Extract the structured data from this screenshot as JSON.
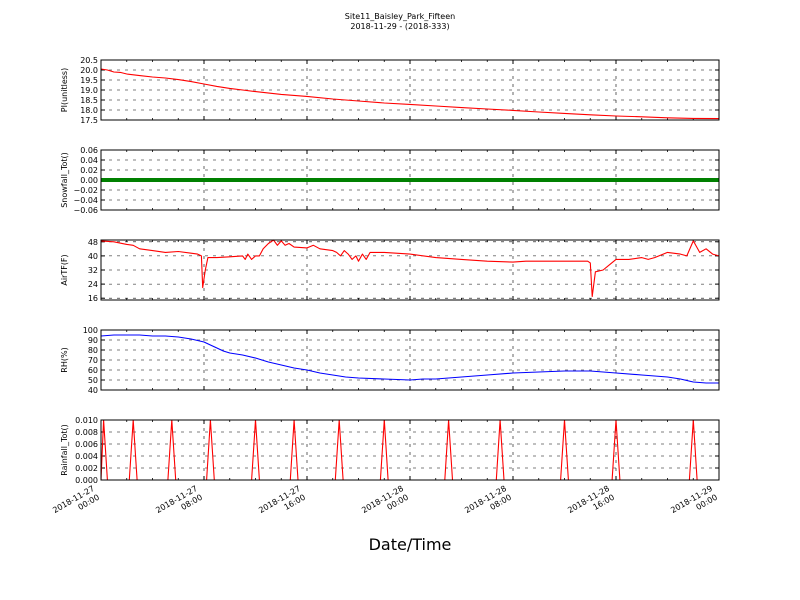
{
  "title_line1": "Site11_Baisley_Park_Fifteen",
  "title_line2": "2018-11-29 - (2018-333)",
  "xlabel": "Date/Time",
  "x_ticks": [
    {
      "t": 0,
      "l1": "2018-11-27",
      "l2": "00:00"
    },
    {
      "t": 8,
      "l1": "2018-11-27",
      "l2": "08:00"
    },
    {
      "t": 16,
      "l1": "2018-11-27",
      "l2": "16:00"
    },
    {
      "t": 24,
      "l1": "2018-11-28",
      "l2": "00:00"
    },
    {
      "t": 32,
      "l1": "2018-11-28",
      "l2": "08:00"
    },
    {
      "t": 40,
      "l1": "2018-11-28",
      "l2": "16:00"
    },
    {
      "t": 48,
      "l1": "2018-11-29",
      "l2": "00:00"
    }
  ],
  "chart_data": [
    {
      "type": "line",
      "ylabel": "PI(unitless)",
      "color": "#ff0000",
      "ylim": [
        17.5,
        20.5
      ],
      "yticks": [
        "17.5",
        "18.0",
        "18.5",
        "19.0",
        "19.5",
        "20.0",
        "20.5"
      ],
      "points": [
        [
          0,
          20.05
        ],
        [
          0.5,
          20.0
        ],
        [
          1,
          19.9
        ],
        [
          1.5,
          19.88
        ],
        [
          2,
          19.8
        ],
        [
          3,
          19.72
        ],
        [
          4,
          19.65
        ],
        [
          5,
          19.6
        ],
        [
          6,
          19.52
        ],
        [
          7,
          19.42
        ],
        [
          8,
          19.3
        ],
        [
          9,
          19.18
        ],
        [
          10,
          19.08
        ],
        [
          11,
          19.0
        ],
        [
          12,
          18.92
        ],
        [
          14,
          18.78
        ],
        [
          16,
          18.68
        ],
        [
          18,
          18.55
        ],
        [
          20,
          18.45
        ],
        [
          22,
          18.35
        ],
        [
          24,
          18.28
        ],
        [
          26,
          18.2
        ],
        [
          28,
          18.12
        ],
        [
          30,
          18.05
        ],
        [
          32,
          17.98
        ],
        [
          34,
          17.9
        ],
        [
          36,
          17.83
        ],
        [
          38,
          17.76
        ],
        [
          40,
          17.7
        ],
        [
          42,
          17.66
        ],
        [
          44,
          17.61
        ],
        [
          46,
          17.58
        ],
        [
          48,
          17.57
        ]
      ]
    },
    {
      "type": "line",
      "ylabel": "Snowfall_Tot()",
      "color": "#008000",
      "ylim": [
        -0.06,
        0.06
      ],
      "yticks": [
        "−0.06",
        "−0.04",
        "−0.02",
        "0.00",
        "0.02",
        "0.04",
        "0.06"
      ],
      "points": [
        [
          0,
          0
        ],
        [
          48,
          0
        ]
      ]
    },
    {
      "type": "line",
      "ylabel": "AirTF(F)",
      "color": "#ff0000",
      "ylim": [
        15,
        49
      ],
      "yticks": [
        "16",
        "24",
        "32",
        "40",
        "48"
      ],
      "points": [
        [
          0,
          48.5
        ],
        [
          1,
          48
        ],
        [
          2,
          46.5
        ],
        [
          2.5,
          46
        ],
        [
          3,
          44
        ],
        [
          4,
          43
        ],
        [
          5,
          42
        ],
        [
          6,
          42.5
        ],
        [
          7,
          41.5
        ],
        [
          7.5,
          41
        ],
        [
          7.8,
          40
        ],
        [
          7.9,
          22
        ],
        [
          8.1,
          32
        ],
        [
          8.3,
          39
        ],
        [
          9,
          39
        ],
        [
          10,
          39.5
        ],
        [
          11,
          40
        ],
        [
          11.2,
          38
        ],
        [
          11.4,
          41
        ],
        [
          11.7,
          38
        ],
        [
          12,
          40
        ],
        [
          12.3,
          40
        ],
        [
          12.6,
          44
        ],
        [
          13,
          47
        ],
        [
          13.4,
          49
        ],
        [
          13.7,
          46
        ],
        [
          14,
          48.5
        ],
        [
          14.3,
          46
        ],
        [
          14.6,
          47
        ],
        [
          15,
          45
        ],
        [
          16,
          44.5
        ],
        [
          16.5,
          46
        ],
        [
          17,
          44
        ],
        [
          17.5,
          43.5
        ],
        [
          18,
          43
        ],
        [
          18.3,
          42
        ],
        [
          18.6,
          40
        ],
        [
          18.9,
          43
        ],
        [
          19.2,
          41
        ],
        [
          19.5,
          38
        ],
        [
          19.8,
          40
        ],
        [
          20,
          37
        ],
        [
          20.3,
          41
        ],
        [
          20.6,
          38
        ],
        [
          20.9,
          42
        ],
        [
          22,
          42
        ],
        [
          24,
          41
        ],
        [
          26,
          39
        ],
        [
          28,
          38
        ],
        [
          30,
          37
        ],
        [
          32,
          36.5
        ],
        [
          33,
          37
        ],
        [
          36,
          37
        ],
        [
          37.8,
          37
        ],
        [
          38,
          36
        ],
        [
          38.15,
          17
        ],
        [
          38.4,
          31
        ],
        [
          39,
          32
        ],
        [
          39.5,
          35
        ],
        [
          40,
          38
        ],
        [
          41,
          38
        ],
        [
          42,
          39
        ],
        [
          42.5,
          38
        ],
        [
          43,
          39
        ],
        [
          44,
          42
        ],
        [
          45,
          41
        ],
        [
          45.5,
          40
        ],
        [
          46,
          48.5
        ],
        [
          46.5,
          42
        ],
        [
          47,
          44
        ],
        [
          47.5,
          41
        ],
        [
          48,
          40
        ]
      ]
    },
    {
      "type": "line",
      "ylabel": "RH(%)",
      "color": "#0000ff",
      "ylim": [
        40,
        100
      ],
      "yticks": [
        "40",
        "50",
        "60",
        "70",
        "80",
        "90",
        "100"
      ],
      "points": [
        [
          0,
          94
        ],
        [
          1,
          95
        ],
        [
          2,
          95
        ],
        [
          3,
          95
        ],
        [
          4,
          94
        ],
        [
          5,
          94
        ],
        [
          6,
          93
        ],
        [
          7,
          91
        ],
        [
          8,
          88
        ],
        [
          8.5,
          85
        ],
        [
          9,
          82
        ],
        [
          9.5,
          79
        ],
        [
          10,
          77
        ],
        [
          11,
          75
        ],
        [
          12,
          72
        ],
        [
          13,
          68
        ],
        [
          14,
          65
        ],
        [
          15,
          62
        ],
        [
          16,
          60
        ],
        [
          17,
          57
        ],
        [
          18,
          55
        ],
        [
          19,
          53
        ],
        [
          20,
          52
        ],
        [
          22,
          51
        ],
        [
          24,
          50
        ],
        [
          25,
          51
        ],
        [
          26,
          51
        ],
        [
          27,
          52
        ],
        [
          28,
          53
        ],
        [
          30,
          55
        ],
        [
          32,
          57
        ],
        [
          34,
          58
        ],
        [
          36,
          59
        ],
        [
          38,
          59
        ],
        [
          40,
          57
        ],
        [
          42,
          55
        ],
        [
          44,
          53
        ],
        [
          45,
          51
        ],
        [
          46,
          48
        ],
        [
          47,
          47
        ],
        [
          48,
          47
        ]
      ]
    },
    {
      "type": "line",
      "ylabel": "Rainfall_Tot()",
      "color": "#ff0000",
      "ylim": [
        0,
        0.01
      ],
      "yticks": [
        "0.000",
        "0.002",
        "0.004",
        "0.006",
        "0.008",
        "0.010"
      ],
      "points": [
        [
          0,
          0
        ],
        [
          0.2,
          0.01
        ],
        [
          0.5,
          0
        ],
        [
          2.2,
          0
        ],
        [
          2.5,
          0.01
        ],
        [
          2.8,
          0
        ],
        [
          5.2,
          0
        ],
        [
          5.5,
          0.01
        ],
        [
          5.8,
          0
        ],
        [
          8.2,
          0
        ],
        [
          8.5,
          0.01
        ],
        [
          8.8,
          0
        ],
        [
          11.7,
          0
        ],
        [
          12,
          0.01
        ],
        [
          12.3,
          0
        ],
        [
          14.7,
          0
        ],
        [
          15,
          0.01
        ],
        [
          15.3,
          0
        ],
        [
          18.2,
          0
        ],
        [
          18.5,
          0.01
        ],
        [
          18.8,
          0
        ],
        [
          21.7,
          0
        ],
        [
          22,
          0.01
        ],
        [
          22.3,
          0
        ],
        [
          26.7,
          0
        ],
        [
          27,
          0.01
        ],
        [
          27.3,
          0
        ],
        [
          30.7,
          0
        ],
        [
          31,
          0.01
        ],
        [
          31.3,
          0
        ],
        [
          35.7,
          0
        ],
        [
          36,
          0.01
        ],
        [
          36.3,
          0
        ],
        [
          39.7,
          0
        ],
        [
          40,
          0.01
        ],
        [
          40.3,
          0
        ],
        [
          45.7,
          0
        ],
        [
          46,
          0.01
        ],
        [
          46.3,
          0
        ],
        [
          48,
          0
        ]
      ]
    }
  ]
}
